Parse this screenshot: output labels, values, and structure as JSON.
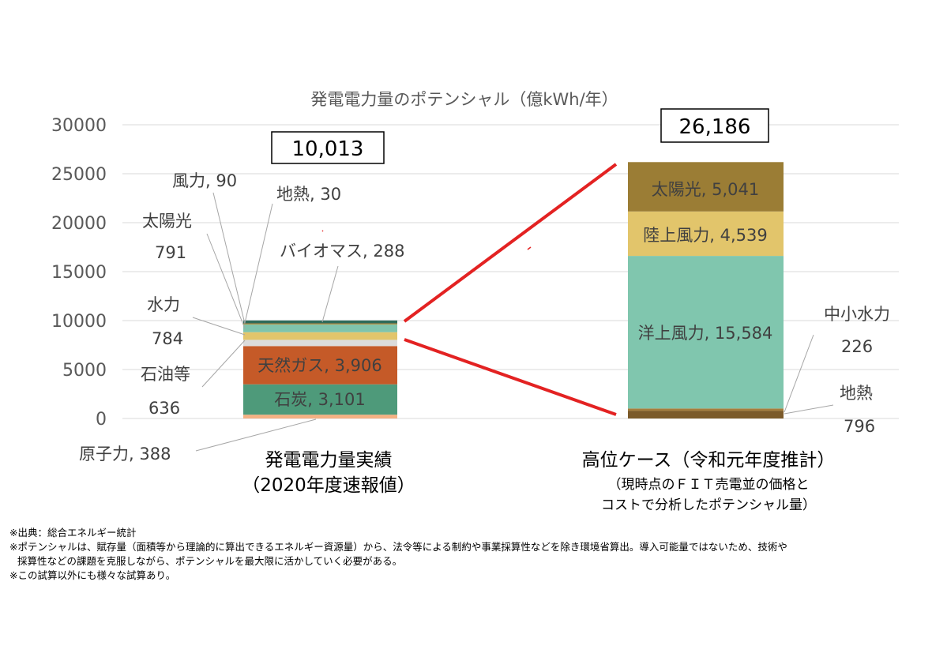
{
  "chart_data": {
    "type": "bar",
    "stacked": true,
    "title": "発電電力量のポテンシャル（億kWh/年）",
    "ylim": [
      0,
      30000
    ],
    "yticks": [
      "0",
      "5000",
      "10000",
      "15000",
      "20000",
      "25000",
      "30000"
    ],
    "grid": true,
    "categories": [
      {
        "label": "発電電力量実績",
        "label2": "（2020年度速報値）"
      },
      {
        "label": "高位ケース（令和元年度推計）",
        "label2": "（現時点のＦＩＴ売電並の価格と",
        "label3": "コストで分析したポテンシャル量）"
      }
    ],
    "totals": [
      "10,013",
      "26,186"
    ],
    "stacks": [
      [
        {
          "name": "原子力",
          "value": 388,
          "color": "#f4b183",
          "label": "原子力, 388"
        },
        {
          "name": "石炭",
          "value": 3101,
          "color": "#4e9a7a",
          "label": "石炭, 3,101"
        },
        {
          "name": "天然ガス",
          "value": 3906,
          "color": "#c55a28",
          "label": "天然ガス, 3,906"
        },
        {
          "name": "石油等",
          "value": 636,
          "color": "#dcdcdc",
          "label": "石油等",
          "label2": "636"
        },
        {
          "name": "水力",
          "value": 784,
          "color": "#e2c56b",
          "label": "水力",
          "label2": "784"
        },
        {
          "name": "太陽光",
          "value": 791,
          "color": "#7fc4ac",
          "label": "太陽光",
          "label2": "791"
        },
        {
          "name": "風力",
          "value": 90,
          "color": "#c8a448",
          "label": "風力, 90"
        },
        {
          "name": "地熱",
          "value": 30,
          "color": "#8c6d2a",
          "label": "地熱, 30"
        },
        {
          "name": "バイオマス",
          "value": 288,
          "color": "#2e6b5a",
          "label": "バイオマス, 288"
        }
      ],
      [
        {
          "name": "地熱",
          "value": 796,
          "color": "#7b5a2a",
          "label": "地熱",
          "label2": "796"
        },
        {
          "name": "中小水力",
          "value": 226,
          "color": "#a67d3d",
          "label": "中小水力",
          "label2": "226"
        },
        {
          "name": "洋上風力",
          "value": 15584,
          "color": "#80c6ae",
          "label": "洋上風力, 15,584"
        },
        {
          "name": "陸上風力",
          "value": 4539,
          "color": "#e2c56b",
          "label": "陸上風力, 4,539"
        },
        {
          "name": "太陽光",
          "value": 5041,
          "color": "#9b7d35",
          "label": "太陽光, 5,041"
        }
      ]
    ]
  },
  "notes": [
    "※出典：総合エネルギー統計",
    "※ポテンシャルは、賦存量（面積等から理論的に算出できるエネルギー資源量）から、法令等による制約や事業採算性などを除き環境省算出。導入可能量ではないため、技術や",
    "採算性などの課題を克服しながら、ポテンシャルを最大限に活かしていく必要がある。",
    "※この試算以外にも様々な試算あり。"
  ]
}
